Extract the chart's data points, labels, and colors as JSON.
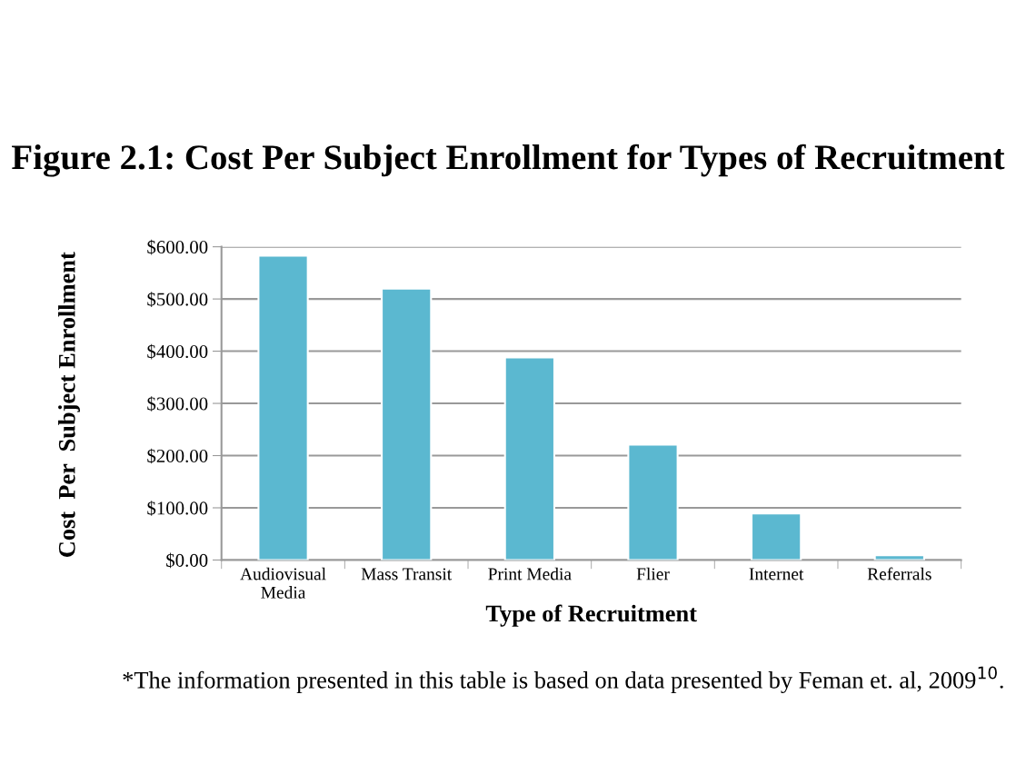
{
  "chart_data": {
    "type": "bar",
    "title": "Figure 2.1: Cost Per Subject Enrollment for Types of Recruitment",
    "xlabel": "Type of Recruitment",
    "ylabel": "Cost  Per  Subject Enrollment",
    "categories": [
      "Audiovisual\nMedia",
      "Mass Transit",
      "Print Media",
      "Flier",
      "Internet",
      "Referrals"
    ],
    "values": [
      583,
      520,
      388,
      221,
      89,
      9
    ],
    "color": "#5bb8d0",
    "ylim": [
      0,
      600
    ],
    "yticks": [
      {
        "value": 0,
        "label": "$0.00"
      },
      {
        "value": 100,
        "label": "$100.00"
      },
      {
        "value": 200,
        "label": "$200.00"
      },
      {
        "value": 300,
        "label": "$300.00"
      },
      {
        "value": 400,
        "label": "$400.00"
      },
      {
        "value": 500,
        "label": "$500.00"
      },
      {
        "value": 600,
        "label": "$600.00"
      }
    ],
    "grid": "y",
    "annotations": [
      "*The information presented in this table is based on data presented by Feman et. al, 2009$^{10}$."
    ]
  }
}
